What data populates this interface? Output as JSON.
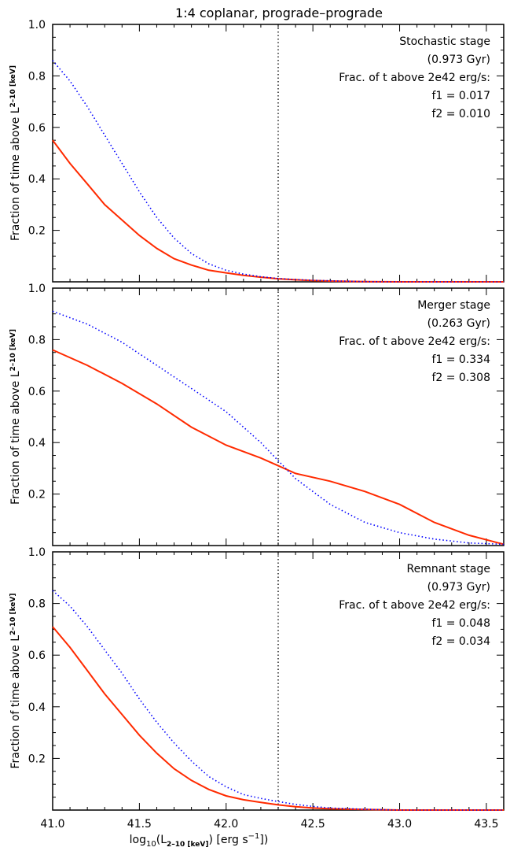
{
  "figure": {
    "title": "1:4 coplanar, prograde–prograde",
    "xlabel": {
      "base": "log",
      "base_sub": "10",
      "paren_open": "(L",
      "l_sub": "2–10 [keV]",
      "units": ") [erg s",
      "exp": "−1",
      "close": "])"
    },
    "ylabel": {
      "main": "Fraction of time above L",
      "sub": "2–10 [keV]"
    },
    "threshold_x": 42.3
  },
  "chart_data": [
    {
      "type": "line",
      "xlim": [
        41.0,
        43.6
      ],
      "ylim": [
        0.0,
        1.0
      ],
      "x_ticks": [
        41.0,
        41.5,
        42.0,
        42.5,
        43.0,
        43.5
      ],
      "y_ticks": [
        0.2,
        0.4,
        0.6,
        0.8,
        1.0
      ],
      "annotations": [
        "Stochastic stage",
        "(0.973 Gyr)",
        "Frac. of t above 2e42 erg/s:",
        "f1 = 0.017",
        "f2 = 0.010"
      ],
      "vline_x": 42.3,
      "series": [
        {
          "style": "solid",
          "color": "#ff2a00",
          "x": [
            41.0,
            41.1,
            41.2,
            41.3,
            41.4,
            41.5,
            41.6,
            41.7,
            41.8,
            41.9,
            42.0,
            42.1,
            42.2,
            42.3,
            42.4,
            42.5,
            42.6,
            42.8,
            43.0,
            43.6
          ],
          "y": [
            0.55,
            0.46,
            0.38,
            0.3,
            0.24,
            0.18,
            0.13,
            0.09,
            0.065,
            0.045,
            0.035,
            0.025,
            0.018,
            0.012,
            0.008,
            0.005,
            0.003,
            0.001,
            0.0,
            0.0
          ]
        },
        {
          "style": "dotted",
          "color": "#0000ff",
          "x": [
            41.0,
            41.1,
            41.2,
            41.3,
            41.4,
            41.5,
            41.6,
            41.7,
            41.8,
            41.9,
            42.0,
            42.1,
            42.2,
            42.3,
            42.4,
            42.5,
            42.6,
            42.8,
            43.0,
            43.6
          ],
          "y": [
            0.86,
            0.78,
            0.68,
            0.57,
            0.46,
            0.35,
            0.25,
            0.17,
            0.11,
            0.07,
            0.045,
            0.03,
            0.02,
            0.013,
            0.009,
            0.006,
            0.004,
            0.001,
            0.0,
            0.0
          ]
        }
      ]
    },
    {
      "type": "line",
      "xlim": [
        41.0,
        43.6
      ],
      "ylim": [
        0.0,
        1.0
      ],
      "x_ticks": [
        41.0,
        41.5,
        42.0,
        42.5,
        43.0,
        43.5
      ],
      "y_ticks": [
        0.2,
        0.4,
        0.6,
        0.8,
        1.0
      ],
      "annotations": [
        "Merger stage",
        "(0.263 Gyr)",
        "Frac. of t above 2e42 erg/s:",
        "f1 = 0.334",
        "f2 = 0.308"
      ],
      "vline_x": 42.3,
      "series": [
        {
          "style": "solid",
          "color": "#ff2a00",
          "x": [
            41.0,
            41.2,
            41.4,
            41.6,
            41.8,
            42.0,
            42.2,
            42.3,
            42.4,
            42.6,
            42.8,
            43.0,
            43.2,
            43.4,
            43.6
          ],
          "y": [
            0.76,
            0.7,
            0.63,
            0.55,
            0.46,
            0.39,
            0.34,
            0.31,
            0.28,
            0.25,
            0.21,
            0.16,
            0.09,
            0.04,
            0.005
          ]
        },
        {
          "style": "dotted",
          "color": "#0000ff",
          "x": [
            41.0,
            41.2,
            41.4,
            41.6,
            41.8,
            42.0,
            42.2,
            42.3,
            42.4,
            42.6,
            42.8,
            43.0,
            43.2,
            43.4,
            43.6
          ],
          "y": [
            0.91,
            0.86,
            0.79,
            0.7,
            0.61,
            0.52,
            0.4,
            0.33,
            0.26,
            0.16,
            0.09,
            0.05,
            0.025,
            0.01,
            0.005
          ]
        }
      ]
    },
    {
      "type": "line",
      "xlim": [
        41.0,
        43.6
      ],
      "ylim": [
        0.0,
        1.0
      ],
      "x_ticks": [
        41.0,
        41.5,
        42.0,
        42.5,
        43.0,
        43.5
      ],
      "x_tick_labels": [
        "41.0",
        "41.5",
        "42.0",
        "42.5",
        "43.0",
        "43.5"
      ],
      "y_ticks": [
        0.2,
        0.4,
        0.6,
        0.8,
        1.0
      ],
      "annotations": [
        "Remnant stage",
        "(0.973 Gyr)",
        "Frac. of t above 2e42 erg/s:",
        "f1 = 0.048",
        "f2 = 0.034"
      ],
      "vline_x": 42.3,
      "series": [
        {
          "style": "solid",
          "color": "#ff2a00",
          "x": [
            41.0,
            41.1,
            41.2,
            41.3,
            41.4,
            41.5,
            41.6,
            41.7,
            41.8,
            41.9,
            42.0,
            42.1,
            42.2,
            42.3,
            42.4,
            42.5,
            42.6,
            42.8,
            43.0,
            43.6
          ],
          "y": [
            0.71,
            0.63,
            0.54,
            0.45,
            0.37,
            0.29,
            0.22,
            0.16,
            0.115,
            0.08,
            0.055,
            0.04,
            0.03,
            0.02,
            0.013,
            0.008,
            0.005,
            0.002,
            0.0,
            0.0
          ]
        },
        {
          "style": "dotted",
          "color": "#0000ff",
          "x": [
            41.0,
            41.1,
            41.2,
            41.3,
            41.4,
            41.5,
            41.6,
            41.7,
            41.8,
            41.9,
            42.0,
            42.1,
            42.2,
            42.3,
            42.4,
            42.5,
            42.6,
            42.8,
            43.0,
            43.6
          ],
          "y": [
            0.85,
            0.79,
            0.71,
            0.62,
            0.53,
            0.43,
            0.34,
            0.26,
            0.19,
            0.13,
            0.09,
            0.06,
            0.045,
            0.033,
            0.022,
            0.014,
            0.008,
            0.003,
            0.0,
            0.0
          ]
        }
      ]
    }
  ]
}
